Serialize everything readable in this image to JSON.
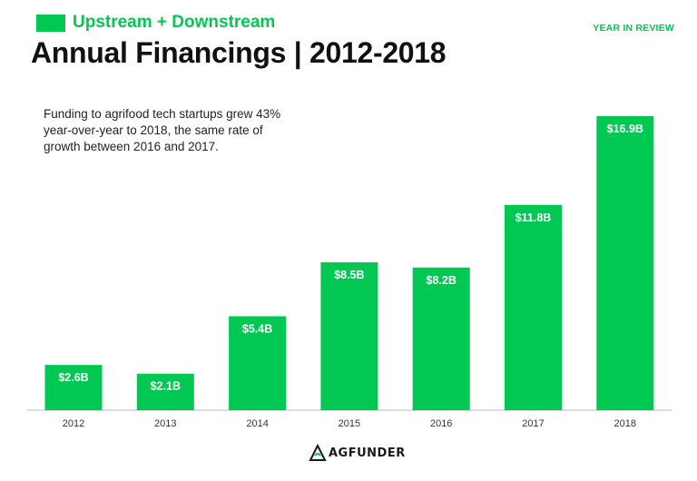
{
  "header": {
    "subtitle": "Upstream + Downstream",
    "title": "Annual Financings | 2012-2018",
    "tag": "YEAR IN REVIEW"
  },
  "annotation": "Funding to agrifood tech startups grew 43% year-over-year to 2018, the same rate of growth between 2016 and 2017.",
  "logo": {
    "text": "AGFUNDER",
    "icon": "agfunder-logo-icon"
  },
  "colors": {
    "accent": "#00c853",
    "bar": "#00c853",
    "axis": "#bbbbbb"
  },
  "chart_data": {
    "type": "bar",
    "categories": [
      "2012",
      "2013",
      "2014",
      "2015",
      "2016",
      "2017",
      "2018"
    ],
    "values": [
      2.6,
      2.1,
      5.4,
      8.5,
      8.2,
      11.8,
      16.9
    ],
    "data_labels": [
      "$2.6B",
      "$2.1B",
      "$5.4B",
      "$8.5B",
      "$8.2B",
      "$11.8B",
      "$16.9B"
    ],
    "title": "Annual Financings | 2012-2018",
    "xlabel": "",
    "ylabel": "",
    "ylim": [
      0,
      16.9
    ],
    "grid": false,
    "legend": "none"
  }
}
